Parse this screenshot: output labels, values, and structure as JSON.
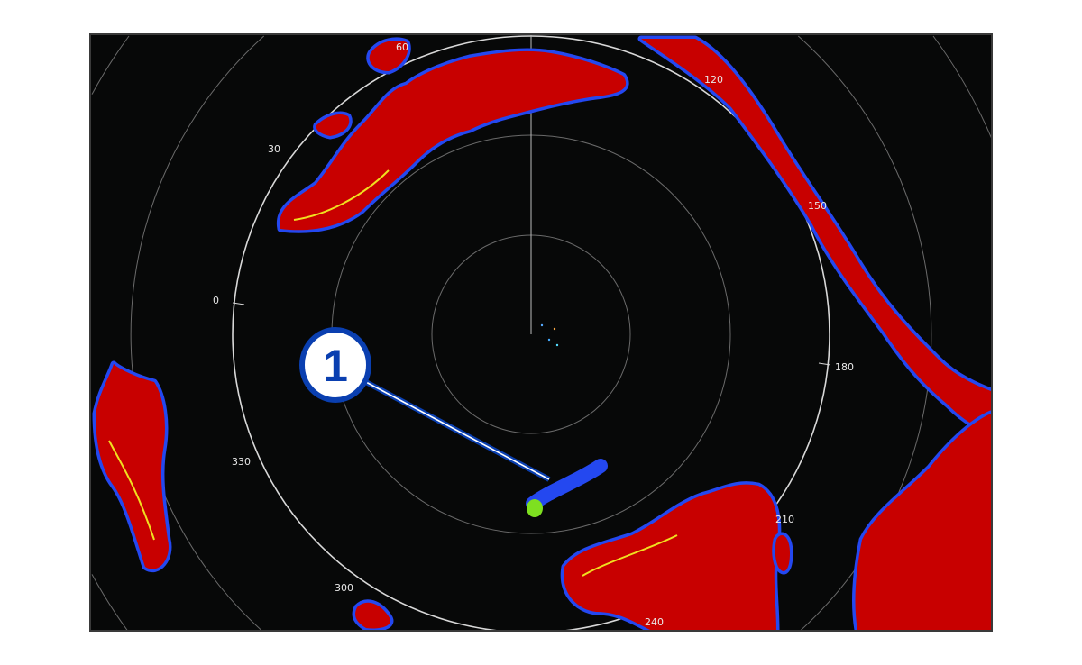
{
  "radar": {
    "bearing_labels": [
      "60",
      "120",
      "30",
      "150",
      "0",
      "180",
      "330",
      "210",
      "300",
      "240"
    ],
    "colors": {
      "background": "#070808",
      "strong_echo": "#c80000",
      "weak_echo": "#2448f0",
      "medium_echo": "#f0e020",
      "target_head": "#7ee020",
      "ring": "#d0d0d0"
    }
  },
  "callout": {
    "number": "1",
    "color": "#0a3fb0",
    "icon": "numbered-callout"
  }
}
